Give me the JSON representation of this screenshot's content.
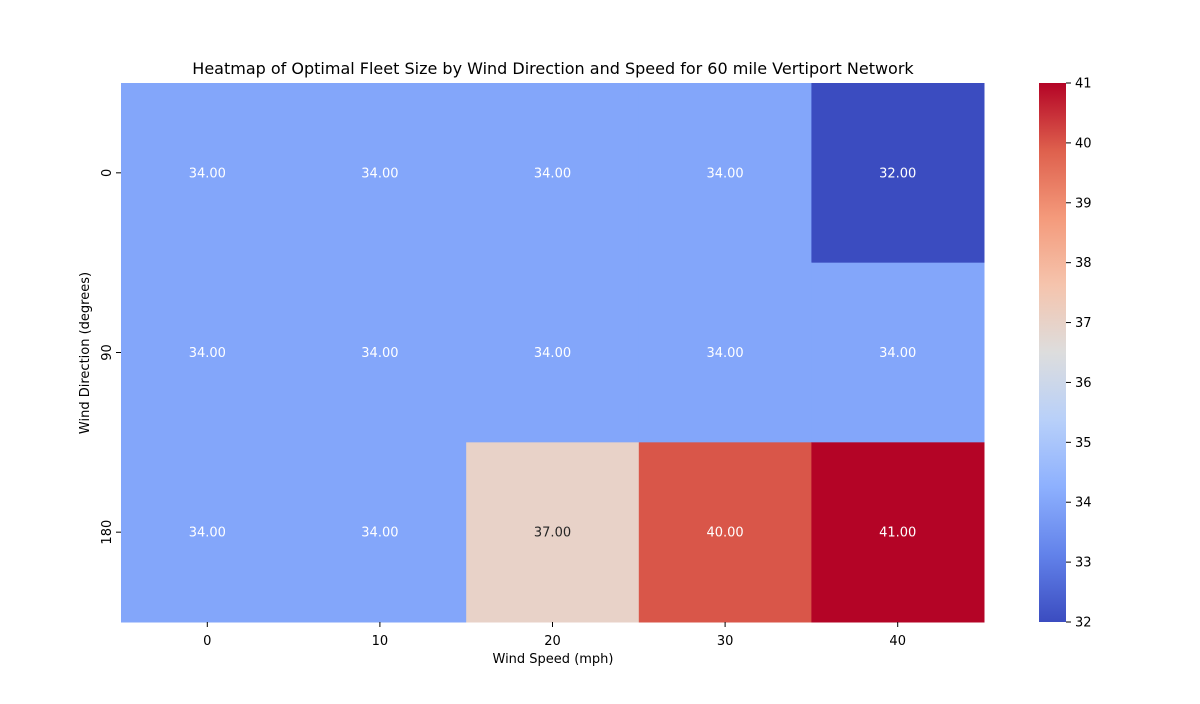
{
  "chart_data": {
    "type": "heatmap",
    "title": "Heatmap of Optimal Fleet Size by Wind Direction and Speed for 60 mile Vertiport Network",
    "xlabel": "Wind Speed (mph)",
    "ylabel": "Wind Direction (degrees)",
    "x_categories": [
      "0",
      "10",
      "20",
      "30",
      "40"
    ],
    "y_categories": [
      "0",
      "90",
      "180"
    ],
    "values": [
      [
        34,
        34,
        34,
        34,
        32
      ],
      [
        34,
        34,
        34,
        34,
        34
      ],
      [
        34,
        34,
        37,
        40,
        41
      ]
    ],
    "annotations": [
      [
        "34.00",
        "34.00",
        "34.00",
        "34.00",
        "32.00"
      ],
      [
        "34.00",
        "34.00",
        "34.00",
        "34.00",
        "34.00"
      ],
      [
        "34.00",
        "34.00",
        "37.00",
        "40.00",
        "41.00"
      ]
    ],
    "colorscale": "coolwarm",
    "colorbar": {
      "range": [
        32,
        41
      ],
      "ticks": [
        "32",
        "33",
        "34",
        "35",
        "36",
        "37",
        "38",
        "39",
        "40",
        "41"
      ]
    },
    "grid": false,
    "legend": "colorbar-right"
  }
}
